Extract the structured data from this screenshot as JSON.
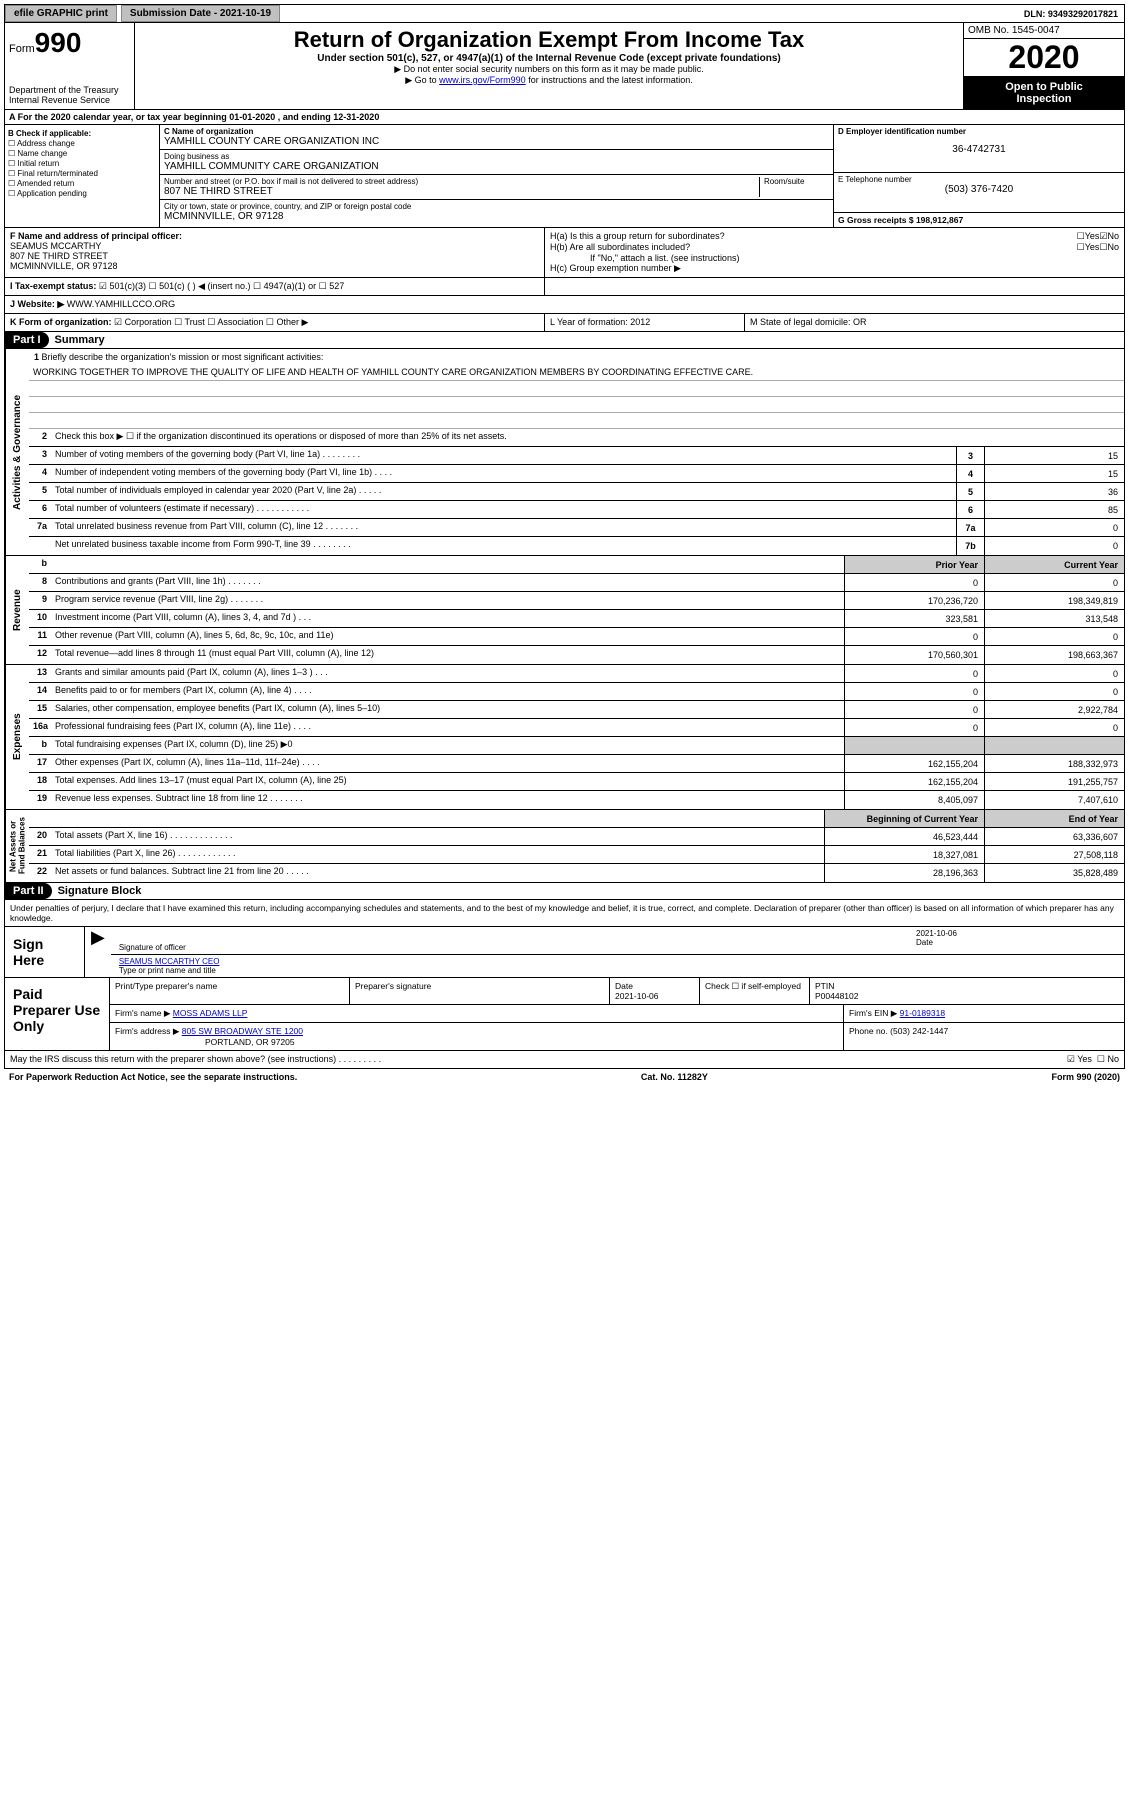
{
  "top": {
    "efile": "efile GRAPHIC print",
    "subdate_lbl": "Submission Date - 2021-10-19",
    "dln": "DLN: 93493292017821"
  },
  "header": {
    "form_prefix": "Form",
    "form_num": "990",
    "dept": "Department of the Treasury\nInternal Revenue Service",
    "title": "Return of Organization Exempt From Income Tax",
    "sub": "Under section 501(c), 527, or 4947(a)(1) of the Internal Revenue Code (except private foundations)",
    "note1": "▶ Do not enter social security numbers on this form as it may be made public.",
    "note2_pre": "▶ Go to ",
    "note2_link": "www.irs.gov/Form990",
    "note2_post": " for instructions and the latest information.",
    "omb": "OMB No. 1545-0047",
    "year": "2020",
    "open": "Open to Public\nInspection"
  },
  "rowA": "A For the 2020 calendar year, or tax year beginning 01-01-2020    , and ending 12-31-2020",
  "colB": {
    "hdr": "B Check if applicable:",
    "items": [
      "Address change",
      "Name change",
      "Initial return",
      "Final return/terminated",
      "Amended return",
      "Application pending"
    ]
  },
  "colC": {
    "name_lbl": "C Name of organization",
    "name": "YAMHILL COUNTY CARE ORGANIZATION INC",
    "dba_lbl": "Doing business as",
    "dba": "YAMHILL COMMUNITY CARE ORGANIZATION",
    "addr_lbl": "Number and street (or P.O. box if mail is not delivered to street address)",
    "room_lbl": "Room/suite",
    "addr": "807 NE THIRD STREET",
    "city_lbl": "City or town, state or province, country, and ZIP or foreign postal code",
    "city": "MCMINNVILLE, OR  97128"
  },
  "colD": {
    "ein_lbl": "D Employer identification number",
    "ein": "36-4742731",
    "tel_lbl": "E Telephone number",
    "tel": "(503) 376-7420",
    "gross_lbl": "G Gross receipts $ 198,912,867"
  },
  "rowF": {
    "lbl": "F Name and address of principal officer:",
    "name": "SEAMUS MCCARTHY",
    "addr1": "807 NE THIRD STREET",
    "addr2": "MCMINNVILLE, OR  97128"
  },
  "rowH": {
    "a": "H(a)  Is this a group return for subordinates?",
    "b": "H(b)  Are all subordinates included?",
    "b_note": "If \"No,\" attach a list. (see instructions)",
    "c": "H(c)  Group exemption number ▶"
  },
  "rowI": {
    "lbl": "I   Tax-exempt status:",
    "opts": [
      "501(c)(3)",
      "501(c) (  ) ◀ (insert no.)",
      "4947(a)(1) or",
      "527"
    ]
  },
  "rowJ": {
    "lbl": "J   Website: ▶",
    "val": "WWW.YAMHILLCCO.ORG"
  },
  "rowK": {
    "lbl": "K Form of organization:",
    "opts": [
      "Corporation",
      "Trust",
      "Association",
      "Other ▶"
    ]
  },
  "rowL": {
    "lbl": "L Year of formation: 2012"
  },
  "rowM": {
    "lbl": "M State of legal domicile: OR"
  },
  "part1": {
    "hdr": "Part I",
    "title": "Summary"
  },
  "mission": {
    "num": "1",
    "lbl": "Briefly describe the organization's mission or most significant activities:",
    "text": "WORKING TOGETHER TO IMPROVE THE QUALITY OF LIFE AND HEALTH OF YAMHILL COUNTY CARE ORGANIZATION MEMBERS BY COORDINATING EFFECTIVE CARE."
  },
  "gov": {
    "side": "Activities & Governance",
    "l2": "Check this box ▶ ☐  if the organization discontinued its operations or disposed of more than 25% of its net assets.",
    "rows": [
      {
        "n": "3",
        "t": "Number of voting members of the governing body (Part VI, line 1a)  .    .    .    .    .    .    .    .",
        "b": "3",
        "v": "15"
      },
      {
        "n": "4",
        "t": "Number of independent voting members of the governing body (Part VI, line 1b)   .    .    .    .",
        "b": "4",
        "v": "15"
      },
      {
        "n": "5",
        "t": "Total number of individuals employed in calendar year 2020 (Part V, line 2a)  .    .    .    .    .",
        "b": "5",
        "v": "36"
      },
      {
        "n": "6",
        "t": "Total number of volunteers (estimate if necessary)    .    .    .    .    .    .    .    .    .    .    .",
        "b": "6",
        "v": "85"
      },
      {
        "n": "7a",
        "t": "Total unrelated business revenue from Part VIII, column (C), line 12   .    .    .    .    .    .    .",
        "b": "7a",
        "v": "0"
      },
      {
        "n": "",
        "t": "Net unrelated business taxable income from Form 990-T, line 39   .    .    .    .    .    .    .    .",
        "b": "7b",
        "v": "0"
      }
    ]
  },
  "rev": {
    "side": "Revenue",
    "hdr_prior": "Prior Year",
    "hdr_curr": "Current Year",
    "rows": [
      {
        "n": "8",
        "t": "Contributions and grants (Part VIII, line 1h)   .    .    .    .    .    .    .",
        "p": "0",
        "c": "0"
      },
      {
        "n": "9",
        "t": "Program service revenue (Part VIII, line 2g)   .    .    .    .    .    .    .",
        "p": "170,236,720",
        "c": "198,349,819"
      },
      {
        "n": "10",
        "t": "Investment income (Part VIII, column (A), lines 3, 4, and 7d )  .    .    .",
        "p": "323,581",
        "c": "313,548"
      },
      {
        "n": "11",
        "t": "Other revenue (Part VIII, column (A), lines 5, 6d, 8c, 9c, 10c, and 11e)",
        "p": "0",
        "c": "0"
      },
      {
        "n": "12",
        "t": "Total revenue—add lines 8 through 11 (must equal Part VIII, column (A), line 12)",
        "p": "170,560,301",
        "c": "198,663,367"
      }
    ]
  },
  "exp": {
    "side": "Expenses",
    "rows": [
      {
        "n": "13",
        "t": "Grants and similar amounts paid (Part IX, column (A), lines 1–3 )  .    .    .",
        "p": "0",
        "c": "0"
      },
      {
        "n": "14",
        "t": "Benefits paid to or for members (Part IX, column (A), line 4)   .    .    .    .",
        "p": "0",
        "c": "0"
      },
      {
        "n": "15",
        "t": "Salaries, other compensation, employee benefits (Part IX, column (A), lines 5–10)",
        "p": "0",
        "c": "2,922,784"
      },
      {
        "n": "16a",
        "t": "Professional fundraising fees (Part IX, column (A), line 11e)  .    .    .    .",
        "p": "0",
        "c": "0"
      },
      {
        "n": "b",
        "t": "Total fundraising expenses (Part IX, column (D), line 25) ▶0",
        "p": "__GREY__",
        "c": "__GREY__"
      },
      {
        "n": "17",
        "t": "Other expenses (Part IX, column (A), lines 11a–11d, 11f–24e)   .    .    .    .",
        "p": "162,155,204",
        "c": "188,332,973"
      },
      {
        "n": "18",
        "t": "Total expenses. Add lines 13–17 (must equal Part IX, column (A), line 25)",
        "p": "162,155,204",
        "c": "191,255,757"
      },
      {
        "n": "19",
        "t": "Revenue less expenses. Subtract line 18 from line 12   .    .    .    .    .    .    .",
        "p": "8,405,097",
        "c": "7,407,610"
      }
    ]
  },
  "net": {
    "side": "Net Assets or\nFund Balances",
    "hdr_prior": "Beginning of Current Year",
    "hdr_curr": "End of Year",
    "rows": [
      {
        "n": "20",
        "t": "Total assets (Part X, line 16)  .    .    .    .    .    .    .    .    .    .    .    .    .",
        "p": "46,523,444",
        "c": "63,336,607"
      },
      {
        "n": "21",
        "t": "Total liabilities (Part X, line 26)   .    .    .    .    .    .    .    .    .    .    .    .",
        "p": "18,327,081",
        "c": "27,508,118"
      },
      {
        "n": "22",
        "t": "Net assets or fund balances. Subtract line 21 from line 20   .    .    .    .    .",
        "p": "28,196,363",
        "c": "35,828,489"
      }
    ]
  },
  "part2": {
    "hdr": "Part II",
    "title": "Signature Block"
  },
  "penalties": "Under penalties of perjury, I declare that I have examined this return, including accompanying schedules and statements, and to the best of my knowledge and belief, it is true, correct, and complete. Declaration of preparer (other than officer) is based on all information of which preparer has any knowledge.",
  "sign": {
    "here": "Sign Here",
    "sig_lbl": "Signature of officer",
    "date_lbl": "Date",
    "date": "2021-10-06",
    "name": "SEAMUS MCCARTHY CEO",
    "name_lbl": "Type or print name and title"
  },
  "prep": {
    "lbl": "Paid Preparer Use Only",
    "h1": "Print/Type preparer's name",
    "h2": "Preparer's signature",
    "h3": "Date",
    "date": "2021-10-06",
    "h4_pre": "Check ☐ if self-employed",
    "h5": "PTIN",
    "ptin": "P00448102",
    "firm_lbl": "Firm's name    ▶",
    "firm": "MOSS ADAMS LLP",
    "ein_lbl": "Firm's EIN ▶",
    "ein": "91-0189318",
    "addr_lbl": "Firm's address ▶",
    "addr1": "805 SW BROADWAY STE 1200",
    "addr2": "PORTLAND, OR  97205",
    "phone_lbl": "Phone no.",
    "phone": "(503) 242-1447"
  },
  "discuss": "May the IRS discuss this return with the preparer shown above? (see instructions)   .    .    .    .    .    .    .    .    .",
  "bottom": {
    "left": "For Paperwork Reduction Act Notice, see the separate instructions.",
    "mid": "Cat. No. 11282Y",
    "right": "Form 990 (2020)"
  },
  "colors": {
    "grey": "#c0c0c0",
    "link": "#0000cc"
  }
}
